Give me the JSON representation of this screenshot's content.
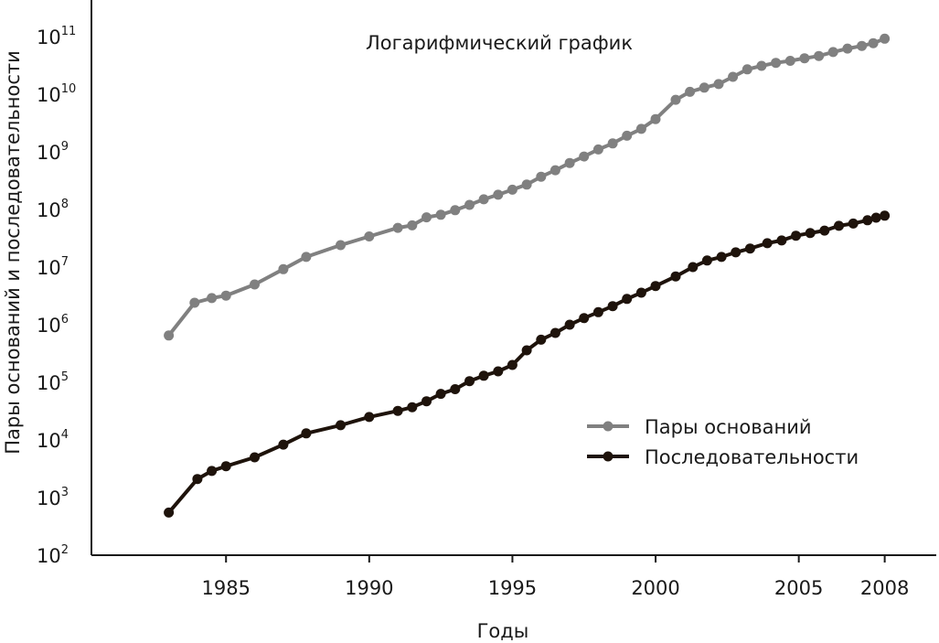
{
  "chart_data": {
    "type": "line",
    "title": "Логарифмический график",
    "xlabel": "Годы",
    "ylabel": "Пары оснований и последовательности",
    "xlim": [
      1980.3,
      2009.8
    ],
    "ylim": [
      100,
      200000000000
    ],
    "y_scale": "log",
    "grid": false,
    "legend_position": "right",
    "x_ticks": [
      1985,
      1990,
      1995,
      2000,
      2005,
      2008
    ],
    "y_ticks": [
      {
        "value": 100,
        "base": "10",
        "exp": "2"
      },
      {
        "value": 1000,
        "base": "10",
        "exp": "3"
      },
      {
        "value": 10000,
        "base": "10",
        "exp": "4"
      },
      {
        "value": 100000,
        "base": "10",
        "exp": "5"
      },
      {
        "value": 1000000,
        "base": "10",
        "exp": "6"
      },
      {
        "value": 10000000,
        "base": "10",
        "exp": "7"
      },
      {
        "value": 100000000,
        "base": "10",
        "exp": "8"
      },
      {
        "value": 1000000000,
        "base": "10",
        "exp": "9"
      },
      {
        "value": 10000000000,
        "base": "10",
        "exp": "10"
      },
      {
        "value": 100000000000,
        "base": "10",
        "exp": "11"
      }
    ],
    "series": [
      {
        "name": "Пары оснований",
        "color": "#808080",
        "points": [
          [
            1983.0,
            650000
          ],
          [
            1983.9,
            2400000
          ],
          [
            1984.5,
            2900000
          ],
          [
            1985.0,
            3200000
          ],
          [
            1986.0,
            5000000
          ],
          [
            1987.0,
            9200000
          ],
          [
            1987.8,
            15000000
          ],
          [
            1989.0,
            24000000
          ],
          [
            1990.0,
            34000000
          ],
          [
            1991.0,
            48000000
          ],
          [
            1991.5,
            53000000
          ],
          [
            1992.0,
            73000000
          ],
          [
            1992.5,
            81000000
          ],
          [
            1993.0,
            97000000
          ],
          [
            1993.5,
            120000000
          ],
          [
            1994.0,
            150000000
          ],
          [
            1994.5,
            180000000
          ],
          [
            1995.0,
            220000000
          ],
          [
            1995.5,
            270000000
          ],
          [
            1996.0,
            370000000
          ],
          [
            1996.5,
            480000000
          ],
          [
            1997.0,
            640000000
          ],
          [
            1997.5,
            830000000
          ],
          [
            1998.0,
            1100000000
          ],
          [
            1998.5,
            1400000000
          ],
          [
            1999.0,
            1900000000
          ],
          [
            1999.5,
            2500000000
          ],
          [
            2000.0,
            3700000000
          ],
          [
            2000.7,
            8000000000
          ],
          [
            2001.2,
            11000000000
          ],
          [
            2001.7,
            13000000000
          ],
          [
            2002.2,
            15000000000
          ],
          [
            2002.7,
            20000000000
          ],
          [
            2003.2,
            27000000000
          ],
          [
            2003.7,
            31000000000
          ],
          [
            2004.2,
            35000000000
          ],
          [
            2004.7,
            38000000000
          ],
          [
            2005.2,
            42000000000
          ],
          [
            2005.7,
            46000000000
          ],
          [
            2006.2,
            54000000000
          ],
          [
            2006.7,
            62000000000
          ],
          [
            2007.2,
            69000000000
          ],
          [
            2007.6,
            77000000000
          ],
          [
            2008.0,
            92000000000
          ]
        ]
      },
      {
        "name": "Последовательности",
        "color": "#1e130b",
        "points": [
          [
            1983.0,
            550
          ],
          [
            1984.0,
            2100
          ],
          [
            1984.5,
            2900
          ],
          [
            1985.0,
            3500
          ],
          [
            1986.0,
            5000
          ],
          [
            1987.0,
            8300
          ],
          [
            1987.8,
            13000
          ],
          [
            1989.0,
            18000
          ],
          [
            1990.0,
            25000
          ],
          [
            1991.0,
            32000
          ],
          [
            1991.5,
            37000
          ],
          [
            1992.0,
            47000
          ],
          [
            1992.5,
            63000
          ],
          [
            1993.0,
            76000
          ],
          [
            1993.5,
            105000
          ],
          [
            1994.0,
            130000
          ],
          [
            1994.5,
            155000
          ],
          [
            1995.0,
            200000
          ],
          [
            1995.5,
            360000
          ],
          [
            1996.0,
            550000
          ],
          [
            1996.5,
            720000
          ],
          [
            1997.0,
            1000000
          ],
          [
            1997.5,
            1300000
          ],
          [
            1998.0,
            1650000
          ],
          [
            1998.5,
            2100000
          ],
          [
            1999.0,
            2800000
          ],
          [
            1999.5,
            3600000
          ],
          [
            2000.0,
            4700000
          ],
          [
            2000.7,
            6900000
          ],
          [
            2001.3,
            10000000
          ],
          [
            2001.8,
            13000000
          ],
          [
            2002.3,
            15000000
          ],
          [
            2002.8,
            18000000
          ],
          [
            2003.3,
            21000000
          ],
          [
            2003.9,
            26000000
          ],
          [
            2004.4,
            29000000
          ],
          [
            2004.9,
            35000000
          ],
          [
            2005.4,
            39000000
          ],
          [
            2005.9,
            43000000
          ],
          [
            2006.4,
            52000000
          ],
          [
            2006.9,
            57000000
          ],
          [
            2007.4,
            65000000
          ],
          [
            2007.7,
            72000000
          ],
          [
            2008.0,
            78000000
          ]
        ]
      }
    ]
  }
}
